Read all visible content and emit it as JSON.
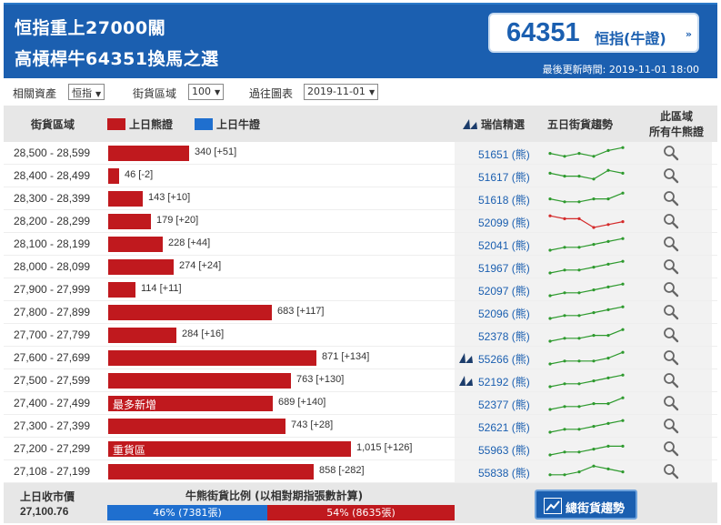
{
  "header": {
    "title_line1": "恒指重上27000關",
    "title_line2": "高槓桿牛64351換馬之選",
    "code": "64351",
    "code_sub": "恒指(牛證)",
    "code_arrow": "»",
    "updated": "最後更新時間: 2019-11-01 18:00"
  },
  "filters": {
    "asset_label": "相關資產",
    "asset_value": "恒指",
    "zone_label": "街貨區域",
    "zone_value": "100",
    "past_label": "過往圖表",
    "past_value": "2019-11-01"
  },
  "table_header": {
    "range": "街貨區域",
    "bear_legend": "上日熊證",
    "bull_legend": "上日牛證",
    "pick": "瑞信精選",
    "trend": "五日街貨趨勢",
    "all_line1": "此區域",
    "all_line2": "所有牛熊證"
  },
  "colors": {
    "header_bg": "#1b5fb0",
    "bear": "#c0191e",
    "bull": "#1f6fcf",
    "trend_up": "#2e9a2e",
    "trend_down": "#d42a2a"
  },
  "rows": [
    {
      "range": "28,500 - 28,599",
      "value": 340,
      "value_text": "340 [+51]",
      "tag": "",
      "code": "51651 (熊)",
      "featured": false,
      "trend_color": "green",
      "trend": [
        3,
        2,
        3,
        2,
        4,
        5
      ]
    },
    {
      "range": "28,400 - 28,499",
      "value": 46,
      "value_text": "46 [-2]",
      "tag": "",
      "code": "51617 (熊)",
      "featured": false,
      "trend_color": "green",
      "trend": [
        4,
        3,
        3,
        2,
        5,
        4
      ]
    },
    {
      "range": "28,300 - 28,399",
      "value": 143,
      "value_text": "143 [+10]",
      "tag": "",
      "code": "51618 (熊)",
      "featured": false,
      "trend_color": "green",
      "trend": [
        3,
        2,
        2,
        3,
        3,
        5
      ]
    },
    {
      "range": "28,200 - 28,299",
      "value": 179,
      "value_text": "179 [+20]",
      "tag": "",
      "code": "52099 (熊)",
      "featured": false,
      "trend_color": "red",
      "trend": [
        5,
        4,
        4,
        1,
        2,
        3
      ]
    },
    {
      "range": "28,100 - 28,199",
      "value": 228,
      "value_text": "228 [+44]",
      "tag": "",
      "code": "52041 (熊)",
      "featured": false,
      "trend_color": "green",
      "trend": [
        1,
        2,
        2,
        3,
        4,
        5
      ]
    },
    {
      "range": "28,000 - 28,099",
      "value": 274,
      "value_text": "274 [+24]",
      "tag": "",
      "code": "51967 (熊)",
      "featured": false,
      "trend_color": "green",
      "trend": [
        1,
        2,
        2,
        3,
        4,
        5
      ]
    },
    {
      "range": "27,900 - 27,999",
      "value": 114,
      "value_text": "114 [+11]",
      "tag": "",
      "code": "52097 (熊)",
      "featured": false,
      "trend_color": "green",
      "trend": [
        1,
        2,
        2,
        3,
        4,
        5
      ]
    },
    {
      "range": "27,800 - 27,899",
      "value": 683,
      "value_text": "683 [+117]",
      "tag": "",
      "code": "52096 (熊)",
      "featured": false,
      "trend_color": "green",
      "trend": [
        1,
        2,
        2,
        3,
        4,
        5
      ]
    },
    {
      "range": "27,700 - 27,799",
      "value": 284,
      "value_text": "284 [+16]",
      "tag": "",
      "code": "52378 (熊)",
      "featured": false,
      "trend_color": "green",
      "trend": [
        1,
        2,
        2,
        3,
        3,
        5
      ]
    },
    {
      "range": "27,600 - 27,699",
      "value": 871,
      "value_text": "871 [+134]",
      "tag": "",
      "code": "55266 (熊)",
      "featured": true,
      "trend_color": "green",
      "trend": [
        1,
        2,
        2,
        2,
        3,
        5
      ]
    },
    {
      "range": "27,500 - 27,599",
      "value": 763,
      "value_text": "763 [+130]",
      "tag": "",
      "code": "52192 (熊)",
      "featured": true,
      "trend_color": "green",
      "trend": [
        1,
        2,
        2,
        3,
        4,
        5
      ]
    },
    {
      "range": "27,400 - 27,499",
      "value": 689,
      "value_text": "689 [+140]",
      "tag": "最多新增",
      "code": "52377 (熊)",
      "featured": false,
      "trend_color": "green",
      "trend": [
        1,
        2,
        2,
        3,
        3,
        5
      ]
    },
    {
      "range": "27,300 - 27,399",
      "value": 743,
      "value_text": "743 [+28]",
      "tag": "",
      "code": "52621 (熊)",
      "featured": false,
      "trend_color": "green",
      "trend": [
        1,
        2,
        2,
        3,
        4,
        5
      ]
    },
    {
      "range": "27,200 - 27,299",
      "value": 1015,
      "value_text": "1,015 [+126]",
      "tag": "重貨區",
      "code": "55963 (熊)",
      "featured": false,
      "trend_color": "green",
      "trend": [
        1,
        2,
        2,
        3,
        4,
        4
      ]
    },
    {
      "range": "27,108 - 27,199",
      "value": 858,
      "value_text": "858 [-282]",
      "tag": "",
      "code": "55838 (熊)",
      "featured": false,
      "trend_color": "green",
      "trend": [
        2,
        2,
        3,
        5,
        4,
        3
      ]
    }
  ],
  "footer": {
    "close_label": "上日收市價",
    "close_value": "27,100.76",
    "ratio_title": "牛熊街貨比例 (以相對期指張數計算)",
    "bull_pct": 46,
    "bull_text": "46% (7381張)",
    "bear_pct": 54,
    "bear_text": "54% (8635張)",
    "trend_button": "總街貨趨勢"
  }
}
